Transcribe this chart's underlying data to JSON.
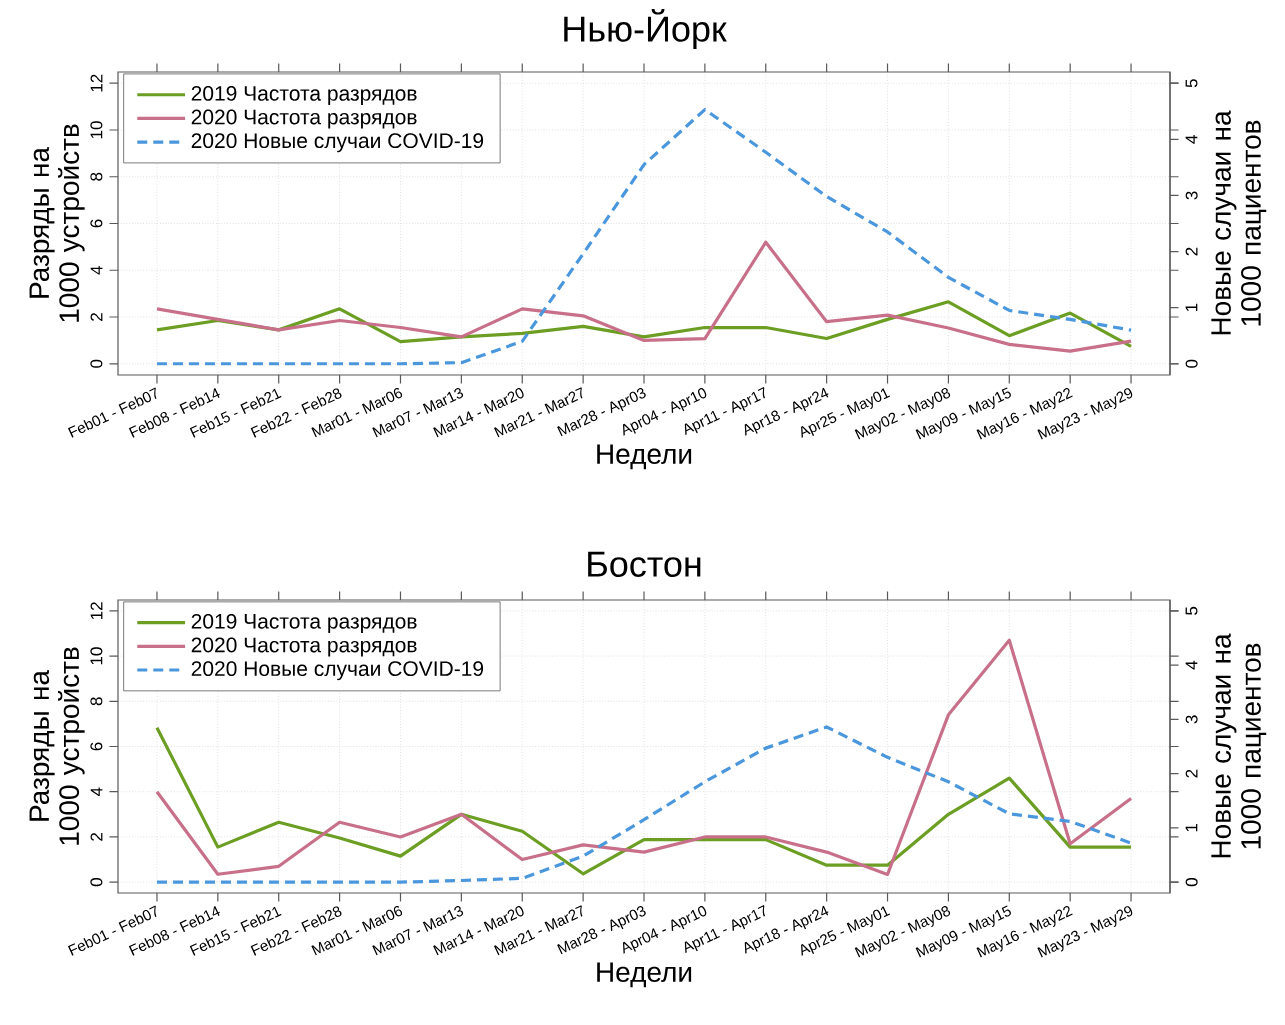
{
  "chart_data": [
    {
      "type": "line",
      "title": "Нью-Йорк",
      "xlabel": "Недели",
      "ylabel": "Разряды на 1000 устройств",
      "y2label": "Новые случаи на 1000 пациентов",
      "categories": [
        "Feb01 - Feb07",
        "Feb08 - Feb14",
        "Feb15 - Feb21",
        "Feb22 - Feb28",
        "Mar01 - Mar06",
        "Mar07 - Mar13",
        "Mar14 - Mar20",
        "Mar21 - Mar27",
        "Mar28 - Apr03",
        "Apr04 - Apr10",
        "Apr11 - Apr17",
        "Apr18 - Apr24",
        "Apr25 - May01",
        "May02 - May08",
        "May09 - May15",
        "May16 - May22",
        "May23 - May29"
      ],
      "series": [
        {
          "name": "2019 Частота разрядов",
          "color": "#6b9e23",
          "line_style": "solid",
          "values": [
            1.45,
            1.85,
            1.45,
            2.35,
            0.95,
            1.15,
            1.3,
            1.6,
            1.15,
            1.55,
            1.55,
            1.08,
            1.9,
            2.65,
            1.2,
            2.17,
            0.74
          ]
        },
        {
          "name": "2020 Частота разрядов",
          "color": "#c8708a",
          "line_style": "solid",
          "values": [
            2.35,
            1.9,
            1.45,
            1.85,
            1.55,
            1.15,
            2.35,
            2.05,
            1.0,
            1.08,
            5.2,
            1.8,
            2.08,
            1.53,
            0.83,
            0.54,
            0.97
          ]
        },
        {
          "name": "2020 Новые случаи COVID-19",
          "color": "#4a97dd",
          "line_style": "dashed",
          "axis": "y2",
          "values": [
            0,
            0,
            0,
            0,
            0,
            0.02,
            0.4,
            1.96,
            3.55,
            4.53,
            3.77,
            2.98,
            2.35,
            1.54,
            0.95,
            0.79,
            0.6
          ]
        }
      ],
      "ylim": [
        -0.48,
        12.48
      ],
      "yticks": [
        0,
        2,
        4,
        6,
        8,
        10,
        12
      ],
      "y2lim": [
        -0.2,
        5.2
      ],
      "y2ticks": [
        0,
        1,
        2,
        3,
        4,
        5
      ],
      "grid": true,
      "legend": "top left"
    },
    {
      "type": "line",
      "title": "Бостон",
      "xlabel": "Недели",
      "ylabel": "Разряды на 1000 устройств",
      "y2label": "Новые случаи на 1000 пациентов",
      "categories": [
        "Feb01 - Feb07",
        "Feb08 - Feb14",
        "Feb15 - Feb21",
        "Feb22 - Feb28",
        "Mar01 - Mar06",
        "Mar07 - Mar13",
        "Mar14 - Mar20",
        "Mar21 - Mar27",
        "Mar28 - Apr03",
        "Apr04 - Apr10",
        "Apr11 - Apr17",
        "Apr18 - Apr24",
        "Apr25 - May01",
        "May02 - May08",
        "May09 - May15",
        "May16 - May22",
        "May23 - May29"
      ],
      "series": [
        {
          "name": "2019 Частота разрядов",
          "color": "#6b9e23",
          "line_style": "solid",
          "values": [
            6.83,
            1.55,
            2.65,
            1.95,
            1.15,
            3.0,
            2.25,
            0.37,
            1.88,
            1.88,
            1.88,
            0.75,
            0.75,
            3.0,
            4.6,
            1.55,
            1.55
          ]
        },
        {
          "name": "2020 Частота разрядов",
          "color": "#c8708a",
          "line_style": "solid",
          "values": [
            4.0,
            0.35,
            0.7,
            2.65,
            2.0,
            3.0,
            1.0,
            1.65,
            1.33,
            2.0,
            2.0,
            1.33,
            0.34,
            7.4,
            10.7,
            1.7,
            3.7
          ]
        },
        {
          "name": "2020 Новые случаи COVID-19",
          "color": "#4a97dd",
          "line_style": "dashed",
          "axis": "y2",
          "values": [
            0,
            0,
            0,
            0,
            0,
            0.03,
            0.07,
            0.48,
            1.15,
            1.85,
            2.47,
            2.86,
            2.3,
            1.85,
            1.26,
            1.12,
            0.72
          ]
        }
      ],
      "ylim": [
        -0.48,
        12.48
      ],
      "yticks": [
        0,
        2,
        4,
        6,
        8,
        10,
        12
      ],
      "y2lim": [
        -0.2,
        5.2
      ],
      "y2ticks": [
        0,
        1,
        2,
        3,
        4,
        5
      ],
      "grid": true,
      "legend": "top left"
    }
  ]
}
